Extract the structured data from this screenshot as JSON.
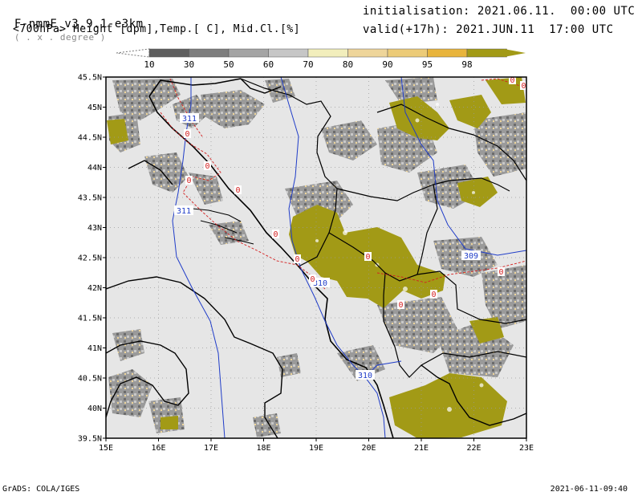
{
  "header": {
    "model": "F-nmmE_v3.9.1-e3km",
    "grid_note": "( . x . degree )",
    "fields": "<700hPa> Height [dpm],Temp.[ C], Mid.Cl.[%]",
    "init": "initialisation: 2021.06.11.  00:00 UTC",
    "valid": "valid(+17h): 2021.JUN.11  17:00 UTC"
  },
  "colorbar": {
    "labels": [
      "10",
      "30",
      "50",
      "60",
      "70",
      "80",
      "90",
      "95",
      "98"
    ],
    "colors": [
      "#5e5e5e",
      "#7e7e7e",
      "#a4a4a4",
      "#c6c6c6",
      "#f2eebc",
      "#eed59a",
      "#eccb78",
      "#e8b43c",
      "#a29a16"
    ]
  },
  "map": {
    "lat_labels": [
      "45.5N",
      "45N",
      "44.5N",
      "44N",
      "43.5N",
      "43N",
      "42.5N",
      "42N",
      "41.5N",
      "41N",
      "40.5N",
      "40N",
      "39.5N"
    ],
    "lon_labels": [
      "15E",
      "16E",
      "17E",
      "18E",
      "19E",
      "20E",
      "21E",
      "22E",
      "23E"
    ],
    "contour_labels": {
      "height_311_top": "311",
      "height_311_mid": "311",
      "height_310_center": "310",
      "height_310_south": "310",
      "height_309": "309",
      "temp_zero": "0"
    },
    "colors": {
      "land": "#e6e6e6",
      "height_contour": "#1f3cc8",
      "temp_contour": "#d42020",
      "cloud_high": "#a29a16"
    }
  },
  "footer": {
    "left": "GrADS: COLA/IGES",
    "right": "2021-06-11-09:40"
  }
}
